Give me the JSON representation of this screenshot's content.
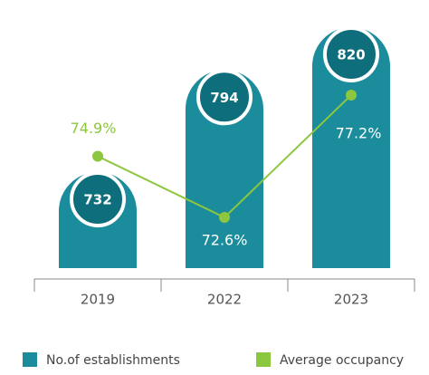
{
  "chart_data": {
    "type": "bar",
    "categories": [
      "2019",
      "2022",
      "2023"
    ],
    "series": [
      {
        "name": "No.of establishments",
        "type": "bar",
        "color": "#1b8c9b",
        "values": [
          732,
          794,
          820
        ]
      },
      {
        "name": "Average occupancy",
        "type": "line",
        "color": "#8dc63f",
        "values": [
          74.9,
          72.6,
          77.2
        ],
        "value_labels": [
          "74.9%",
          "72.6%",
          "77.2%"
        ]
      }
    ],
    "legend": "bottom"
  }
}
